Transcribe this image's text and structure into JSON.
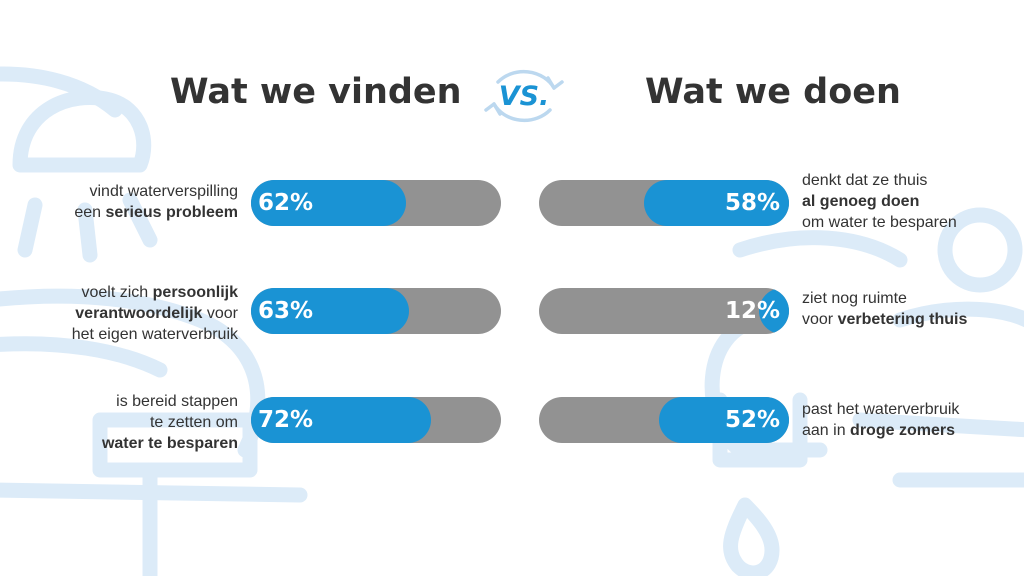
{
  "header": {
    "left_title": "Wat we vinden",
    "right_title": "Wat we doen",
    "vs_label": "VS."
  },
  "colors": {
    "bar_fill": "#1a93d4",
    "bar_track": "#929292",
    "text": "#333333",
    "background_icons": "#dcebf8"
  },
  "chart_data": [
    {
      "type": "bar",
      "title": "Wat we vinden",
      "orientation": "horizontal",
      "unit": "%",
      "xlim": [
        0,
        100
      ],
      "categories": [
        "vindt waterverspilling een serieus probleem",
        "voelt zich persoonlijk verantwoordelijk voor het eigen waterverbruik",
        "is bereid stappen te zetten om water te besparen"
      ],
      "values": [
        62,
        63,
        72
      ],
      "value_labels": [
        "62%",
        "63%",
        "72%"
      ],
      "label_lines": [
        [
          [
            {
              "t": "vindt waterverspilling",
              "b": false
            }
          ],
          [
            {
              "t": "een ",
              "b": false
            },
            {
              "t": "serieus probleem",
              "b": true
            }
          ]
        ],
        [
          [
            {
              "t": "voelt zich ",
              "b": false
            },
            {
              "t": "persoonlijk",
              "b": true
            }
          ],
          [
            {
              "t": "verantwoordelijk",
              "b": true
            },
            {
              "t": " voor",
              "b": false
            }
          ],
          [
            {
              "t": "het eigen waterverbruik",
              "b": false
            }
          ]
        ],
        [
          [
            {
              "t": "is bereid stappen",
              "b": false
            }
          ],
          [
            {
              "t": "te zetten om",
              "b": false
            }
          ],
          [
            {
              "t": "water te besparen",
              "b": true
            }
          ]
        ]
      ]
    },
    {
      "type": "bar",
      "title": "Wat we doen",
      "orientation": "horizontal",
      "unit": "%",
      "xlim": [
        0,
        100
      ],
      "categories": [
        "denkt dat ze thuis al genoeg doen om water te besparen",
        "ziet nog ruimte voor verbetering thuis",
        "past het waterverbruik aan in droge zomers"
      ],
      "values": [
        58,
        12,
        52
      ],
      "value_labels": [
        "58%",
        "12%",
        "52%"
      ],
      "label_lines": [
        [
          [
            {
              "t": "denkt dat ze thuis",
              "b": false
            }
          ],
          [
            {
              "t": "al genoeg doen",
              "b": true
            }
          ],
          [
            {
              "t": "om water te besparen",
              "b": false
            }
          ]
        ],
        [
          [
            {
              "t": "ziet nog ruimte",
              "b": false
            }
          ],
          [
            {
              "t": "voor ",
              "b": false
            },
            {
              "t": "verbetering thuis",
              "b": true
            }
          ]
        ],
        [
          [
            {
              "t": "past het waterverbruik",
              "b": false
            }
          ],
          [
            {
              "t": "aan in ",
              "b": false
            },
            {
              "t": "droge zomers",
              "b": true
            }
          ]
        ]
      ]
    }
  ]
}
